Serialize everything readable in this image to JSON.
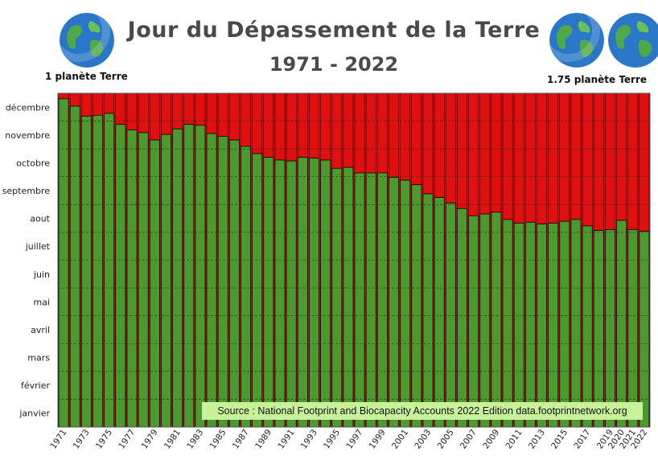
{
  "header": {
    "title": "Jour du Dépassement de la Terre",
    "subtitle": "1971 - 2022",
    "left_label": "1 planète Terre",
    "right_label": "1.75 planète Terre",
    "earth_icon": "earth-globe-icon"
  },
  "source": "Source : National Footprint and Biocapacity Accounts 2022 Edition data.footprintnetwork.org",
  "colors": {
    "green": "#4a9a2e",
    "red": "#e01010",
    "grid": "#2a2a2a"
  },
  "chart_data": {
    "type": "bar",
    "stacked": true,
    "y_tick_labels": [
      "janvier",
      "février",
      "mars",
      "avril",
      "mai",
      "juin",
      "juillet",
      "aout",
      "septembre",
      "octobre",
      "novembre",
      "décembre"
    ],
    "ylim_day_of_year": [
      0,
      365
    ],
    "x": [
      "1971",
      "1972",
      "1973",
      "1974",
      "1975",
      "1976",
      "1977",
      "1978",
      "1979",
      "1980",
      "1981",
      "1982",
      "1983",
      "1984",
      "1985",
      "1986",
      "1987",
      "1988",
      "1989",
      "1990",
      "1991",
      "1992",
      "1993",
      "1994",
      "1995",
      "1996",
      "1997",
      "1998",
      "1999",
      "2000",
      "2001",
      "2002",
      "2003",
      "2004",
      "2005",
      "2006",
      "2007",
      "2008",
      "2009",
      "2010",
      "2011",
      "2012",
      "2013",
      "2014",
      "2015",
      "2016",
      "2017",
      "2018",
      "2019",
      "2020",
      "2021",
      "2022"
    ],
    "x_tick_labels": [
      "1971",
      "1973",
      "1975",
      "1977",
      "1979",
      "1981",
      "1983",
      "1985",
      "1987",
      "1989",
      "1991",
      "1993",
      "1995",
      "1997",
      "1999",
      "2001",
      "2003",
      "2005",
      "2007",
      "2009",
      "2011",
      "2013",
      "2015",
      "2017",
      "2019",
      "2020",
      "2021",
      "2022"
    ],
    "series": [
      {
        "values": [
          359,
          351,
          340,
          341,
          343,
          331,
          325,
          322,
          314,
          320,
          326,
          331,
          330,
          321,
          318,
          314,
          307,
          299,
          295,
          292,
          291,
          295,
          294,
          292,
          283,
          284,
          278,
          278,
          278,
          273,
          270,
          265,
          255,
          251,
          245,
          239,
          231,
          233,
          235,
          227,
          223,
          224,
          222,
          223,
          225,
          227,
          220,
          215,
          216,
          226,
          216,
          214
        ]
      },
      {
        "values": [
          6,
          14,
          25,
          24,
          22,
          34,
          40,
          43,
          51,
          45,
          39,
          34,
          35,
          44,
          47,
          51,
          58,
          66,
          70,
          73,
          74,
          70,
          71,
          73,
          82,
          81,
          87,
          87,
          87,
          92,
          95,
          100,
          110,
          114,
          120,
          126,
          134,
          132,
          130,
          138,
          142,
          141,
          143,
          142,
          140,
          138,
          145,
          150,
          149,
          139,
          149,
          151
        ]
      }
    ]
  }
}
